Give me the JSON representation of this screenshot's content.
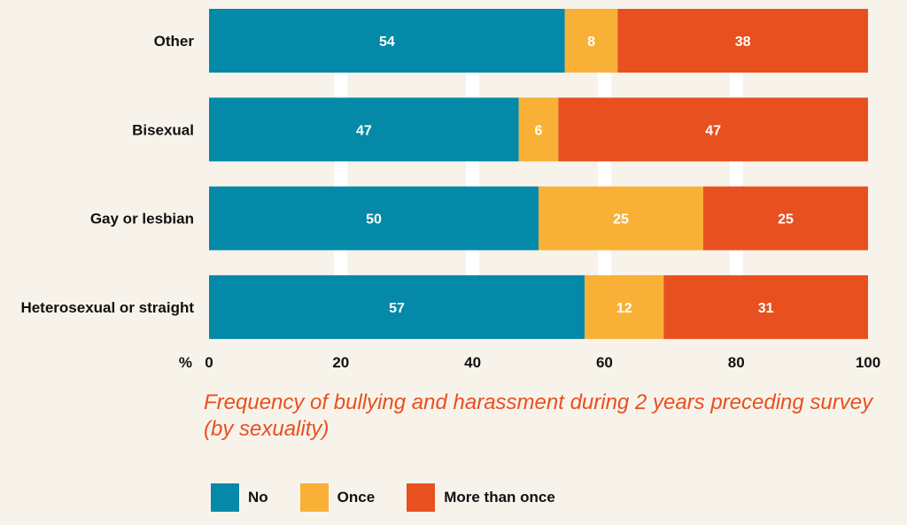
{
  "chart_data": {
    "type": "bar",
    "orientation": "horizontal",
    "stacked": true,
    "title": "Frequency of bullying and harassment during 2 years preceding survey (by sexuality)",
    "unit_label": "%",
    "categories": [
      "Other",
      "Bisexual",
      "Gay or lesbian",
      "Heterosexual or straight"
    ],
    "series": [
      {
        "name": "No",
        "color": "#0589a8",
        "values": [
          54,
          47,
          50,
          57
        ]
      },
      {
        "name": "Once",
        "color": "#f8b136",
        "values": [
          8,
          6,
          25,
          12
        ]
      },
      {
        "name": "More than once",
        "color": "#e8501f",
        "values": [
          38,
          47,
          25,
          31
        ]
      }
    ],
    "xlim": [
      0,
      100
    ],
    "xticks": [
      0,
      20,
      40,
      60,
      80,
      100
    ],
    "grid": true,
    "legend_position": "bottom-left",
    "track_color": "#eeebe8",
    "gridline_color": "#ffffff"
  }
}
